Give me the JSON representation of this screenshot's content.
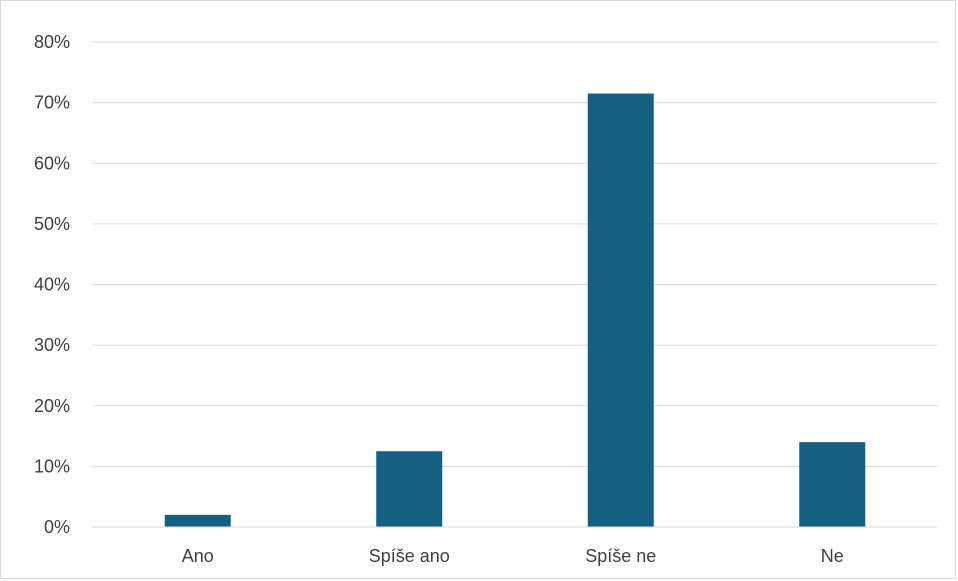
{
  "chart_data": {
    "type": "bar",
    "title": "",
    "xlabel": "",
    "ylabel": "",
    "categories": [
      "Ano",
      "Spíše ano",
      "Spíše ne",
      "Ne"
    ],
    "values": [
      0.02,
      0.125,
      0.715,
      0.14
    ],
    "ylim": [
      0,
      0.8
    ],
    "yticks": [
      0,
      0.1,
      0.2,
      0.3,
      0.4,
      0.5,
      0.6,
      0.7,
      0.8
    ],
    "ytick_labels": [
      "0%",
      "10%",
      "20%",
      "30%",
      "40%",
      "50%",
      "60%",
      "70%",
      "80%"
    ],
    "grid": true,
    "legend": "none",
    "bar_color": "#156082"
  }
}
